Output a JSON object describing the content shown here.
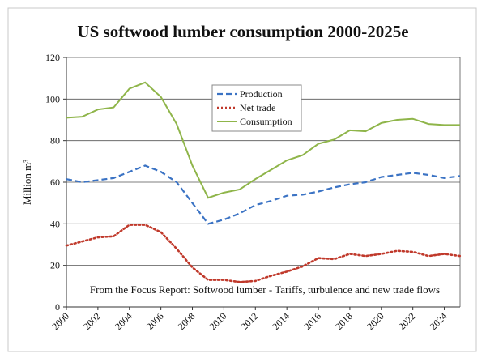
{
  "chart_data": {
    "type": "line",
    "title": "US softwood lumber consumption 2000-2025e",
    "ylabel": "Million m³",
    "annotation": "From the Focus Report: Softwood lumber - Tariffs, turbulence and new trade flows",
    "x": [
      2000,
      2001,
      2002,
      2003,
      2004,
      2005,
      2006,
      2007,
      2008,
      2009,
      2010,
      2011,
      2012,
      2013,
      2014,
      2015,
      2016,
      2017,
      2018,
      2019,
      2020,
      2021,
      2022,
      2023,
      2024,
      2025
    ],
    "xlim": [
      2000,
      2025
    ],
    "xticks": [
      2000,
      2002,
      2004,
      2006,
      2008,
      2010,
      2012,
      2014,
      2016,
      2018,
      2020,
      2022,
      2024
    ],
    "ylim": [
      0,
      120
    ],
    "yticks": [
      0,
      20,
      40,
      60,
      80,
      100,
      120
    ],
    "grid": true,
    "legend": "top-center",
    "series": [
      {
        "name": "Production",
        "color": "#3b73c4",
        "dash": "dashed",
        "values": [
          61.5,
          60,
          61,
          62,
          65,
          68,
          65,
          60,
          50,
          40,
          42,
          45,
          49,
          51,
          53.5,
          54,
          55.5,
          57.5,
          59,
          60,
          62.5,
          63.5,
          64.5,
          63.5,
          62,
          63
        ]
      },
      {
        "name": "Net trade",
        "color": "#c0392b",
        "dash": "dotted",
        "values": [
          29.5,
          31.5,
          33.5,
          34,
          39.5,
          39.5,
          36,
          28,
          19,
          13,
          13,
          12,
          12.5,
          15,
          17,
          19.5,
          23.5,
          23,
          25.5,
          24.5,
          25.5,
          27,
          26.5,
          24.5,
          25.5,
          24.5
        ]
      },
      {
        "name": "Consumption",
        "color": "#8fb54a",
        "dash": "solid",
        "values": [
          91,
          91.5,
          95,
          96,
          105,
          108,
          101,
          88,
          68,
          52.5,
          55,
          56.5,
          61.5,
          66,
          70.5,
          73,
          78.5,
          80.5,
          85,
          84.5,
          88.5,
          90,
          90.5,
          88,
          87.5,
          87.5
        ]
      }
    ]
  }
}
